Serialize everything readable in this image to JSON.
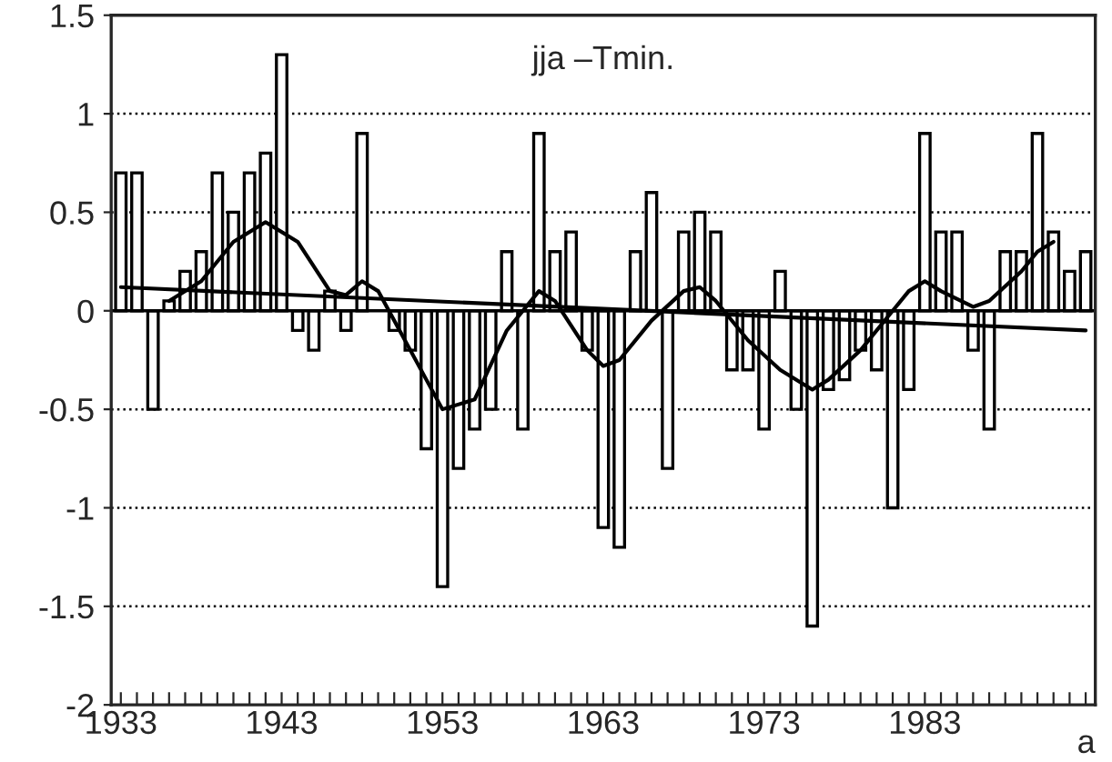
{
  "chart_data": {
    "type": "bar",
    "title": "jja –Tmin.",
    "xlabel": "a",
    "xlim": [
      1932.4,
      1993.6
    ],
    "ylim": [
      -2,
      1.5
    ],
    "xticks": [
      1933,
      {
        "value": 1934,
        "label": null
      },
      {
        "value": 1935,
        "label": null
      },
      {
        "value": 1936,
        "label": null
      },
      {
        "value": 1937,
        "label": null
      },
      {
        "value": 1938,
        "label": null
      },
      {
        "value": 1939,
        "label": null
      },
      {
        "value": 1940,
        "label": null
      },
      {
        "value": 1941,
        "label": null
      },
      {
        "value": 1942,
        "label": null
      },
      1943,
      {
        "value": 1944,
        "label": null
      },
      {
        "value": 1945,
        "label": null
      },
      {
        "value": 1946,
        "label": null
      },
      {
        "value": 1947,
        "label": null
      },
      {
        "value": 1948,
        "label": null
      },
      {
        "value": 1949,
        "label": null
      },
      {
        "value": 1950,
        "label": null
      },
      {
        "value": 1951,
        "label": null
      },
      {
        "value": 1952,
        "label": null
      },
      1953,
      {
        "value": 1954,
        "label": null
      },
      {
        "value": 1955,
        "label": null
      },
      {
        "value": 1956,
        "label": null
      },
      {
        "value": 1957,
        "label": null
      },
      {
        "value": 1958,
        "label": null
      },
      {
        "value": 1959,
        "label": null
      },
      {
        "value": 1960,
        "label": null
      },
      {
        "value": 1961,
        "label": null
      },
      {
        "value": 1962,
        "label": null
      },
      1963,
      {
        "value": 1964,
        "label": null
      },
      {
        "value": 1965,
        "label": null
      },
      {
        "value": 1966,
        "label": null
      },
      {
        "value": 1967,
        "label": null
      },
      {
        "value": 1968,
        "label": null
      },
      {
        "value": 1969,
        "label": null
      },
      {
        "value": 1970,
        "label": null
      },
      {
        "value": 1971,
        "label": null
      },
      {
        "value": 1972,
        "label": null
      },
      1973,
      {
        "value": 1974,
        "label": null
      },
      {
        "value": 1975,
        "label": null
      },
      {
        "value": 1976,
        "label": null
      },
      {
        "value": 1977,
        "label": null
      },
      {
        "value": 1978,
        "label": null
      },
      {
        "value": 1979,
        "label": null
      },
      {
        "value": 1980,
        "label": null
      },
      {
        "value": 1981,
        "label": null
      },
      {
        "value": 1982,
        "label": null
      },
      1983,
      {
        "value": 1984,
        "label": null
      },
      {
        "value": 1985,
        "label": null
      },
      {
        "value": 1986,
        "label": null
      },
      {
        "value": 1987,
        "label": null
      },
      {
        "value": 1988,
        "label": null
      },
      {
        "value": 1989,
        "label": null
      },
      {
        "value": 1990,
        "label": null
      },
      {
        "value": 1991,
        "label": null
      },
      {
        "value": 1992,
        "label": null
      },
      {
        "value": 1993,
        "label": null
      }
    ],
    "yticks": [
      -2,
      -1.5,
      -1,
      -0.5,
      0,
      0.5,
      1,
      1.5
    ],
    "grid": "y",
    "series": [
      {
        "color": "#ffffff",
        "x": [
          1933,
          1934,
          1935,
          1936,
          1937,
          1938,
          1939,
          1940,
          1941,
          1942,
          1943,
          1944,
          1945,
          1946,
          1947,
          1948,
          1949,
          1950,
          1951,
          1952,
          1953,
          1954,
          1955,
          1956,
          1957,
          1958,
          1959,
          1960,
          1961,
          1962,
          1963,
          1964,
          1965,
          1966,
          1967,
          1968,
          1969,
          1970,
          1971,
          1972,
          1973,
          1974,
          1975,
          1976,
          1977,
          1978,
          1979,
          1980,
          1981,
          1982,
          1983,
          1984,
          1985,
          1986,
          1987,
          1988,
          1989,
          1990,
          1991,
          1992,
          1993
        ],
        "values": [
          0.7,
          0.7,
          -0.5,
          0.05,
          0.2,
          0.3,
          0.7,
          0.5,
          0.7,
          0.8,
          1.3,
          -0.1,
          -0.2,
          0.1,
          -0.1,
          0.9,
          null,
          -0.1,
          -0.2,
          -0.7,
          -1.4,
          -0.8,
          -0.6,
          -0.5,
          0.3,
          -0.6,
          0.9,
          0.3,
          0.4,
          -0.2,
          -1.1,
          -1.2,
          0.3,
          0.6,
          -0.8,
          0.4,
          0.5,
          0.4,
          -0.3,
          -0.3,
          -0.6,
          0.2,
          -0.5,
          -1.6,
          -0.4,
          -0.35,
          -0.2,
          -0.3,
          -1.0,
          -0.4,
          0.9,
          0.4,
          0.4,
          -0.2,
          -0.6,
          0.3,
          0.3,
          0.9,
          0.4,
          0.2,
          0.3
        ]
      },
      {
        "type": "line",
        "color": "#000000",
        "x": [
          1936,
          1938,
          1940,
          1942,
          1944,
          1946,
          1947,
          1948,
          1949,
          1950,
          1952,
          1953,
          1955,
          1957,
          1959,
          1960,
          1962,
          1963,
          1964,
          1966,
          1968,
          1969,
          1970,
          1972,
          1974,
          1976,
          1977,
          1979,
          1981,
          1982,
          1983,
          1984,
          1986,
          1987,
          1989,
          1990,
          1991
        ],
        "values": [
          0.05,
          0.15,
          0.35,
          0.45,
          0.35,
          0.1,
          0.08,
          0.15,
          0.1,
          -0.05,
          -0.35,
          -0.5,
          -0.45,
          -0.1,
          0.1,
          0.05,
          -0.2,
          -0.28,
          -0.25,
          -0.05,
          0.1,
          0.12,
          0.05,
          -0.15,
          -0.3,
          -0.4,
          -0.35,
          -0.2,
          0.0,
          0.1,
          0.15,
          0.1,
          0.02,
          0.05,
          0.2,
          0.3,
          0.35
        ]
      },
      {
        "type": "line",
        "color": "#000000",
        "x": [
          1933,
          1993
        ],
        "values": [
          0.12,
          -0.1
        ]
      }
    ]
  }
}
